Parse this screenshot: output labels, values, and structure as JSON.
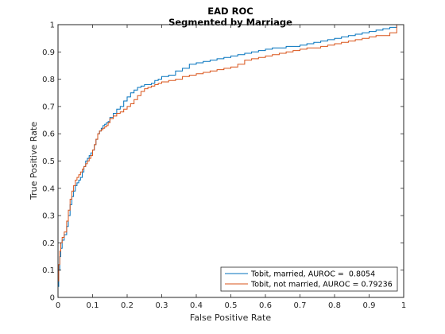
{
  "chart_data": {
    "type": "line",
    "title": "EAD ROC",
    "subtitle": "Segmented by Marriage",
    "xlabel": "False Positive Rate",
    "ylabel": "True Positive Rate",
    "xlim": [
      0,
      1
    ],
    "ylim": [
      0,
      1
    ],
    "xticks": [
      "0",
      "0.1",
      "0.2",
      "0.3",
      "0.4",
      "0.5",
      "0.6",
      "0.7",
      "0.8",
      "0.9",
      "1"
    ],
    "yticks": [
      "0",
      "0.1",
      "0.2",
      "0.3",
      "0.4",
      "0.5",
      "0.6",
      "0.7",
      "0.8",
      "0.9",
      "1"
    ],
    "grid": false,
    "legend_position": "bottom-right",
    "series": [
      {
        "name": "Tobit, married, AUROC =  0.8054",
        "color": "#0072BD",
        "x": [
          0,
          0.002,
          0.005,
          0.008,
          0.012,
          0.018,
          0.025,
          0.03,
          0.035,
          0.04,
          0.045,
          0.05,
          0.055,
          0.06,
          0.065,
          0.07,
          0.075,
          0.08,
          0.085,
          0.09,
          0.095,
          0.1,
          0.105,
          0.11,
          0.115,
          0.12,
          0.125,
          0.13,
          0.135,
          0.14,
          0.145,
          0.15,
          0.16,
          0.17,
          0.18,
          0.19,
          0.2,
          0.21,
          0.22,
          0.23,
          0.24,
          0.25,
          0.26,
          0.27,
          0.28,
          0.29,
          0.3,
          0.32,
          0.34,
          0.36,
          0.38,
          0.4,
          0.42,
          0.44,
          0.46,
          0.48,
          0.5,
          0.52,
          0.54,
          0.56,
          0.58,
          0.6,
          0.62,
          0.64,
          0.66,
          0.68,
          0.7,
          0.72,
          0.74,
          0.76,
          0.78,
          0.8,
          0.82,
          0.84,
          0.86,
          0.88,
          0.9,
          0.92,
          0.94,
          0.96,
          0.98,
          1.0
        ],
        "y": [
          0,
          0.04,
          0.1,
          0.15,
          0.18,
          0.21,
          0.23,
          0.26,
          0.3,
          0.34,
          0.37,
          0.39,
          0.41,
          0.42,
          0.43,
          0.44,
          0.46,
          0.48,
          0.5,
          0.51,
          0.52,
          0.53,
          0.54,
          0.56,
          0.58,
          0.6,
          0.61,
          0.62,
          0.63,
          0.635,
          0.64,
          0.645,
          0.66,
          0.675,
          0.69,
          0.7,
          0.72,
          0.735,
          0.75,
          0.76,
          0.77,
          0.775,
          0.78,
          0.78,
          0.785,
          0.795,
          0.8,
          0.81,
          0.815,
          0.83,
          0.84,
          0.855,
          0.86,
          0.865,
          0.87,
          0.875,
          0.88,
          0.885,
          0.89,
          0.895,
          0.9,
          0.905,
          0.91,
          0.915,
          0.915,
          0.92,
          0.92,
          0.925,
          0.93,
          0.935,
          0.94,
          0.945,
          0.95,
          0.955,
          0.96,
          0.965,
          0.97,
          0.975,
          0.98,
          0.985,
          0.99,
          1.0
        ]
      },
      {
        "name": "Tobit, not married, AUROC = 0.79236",
        "color": "#D95319",
        "x": [
          0,
          0.002,
          0.005,
          0.008,
          0.012,
          0.018,
          0.025,
          0.03,
          0.035,
          0.04,
          0.045,
          0.05,
          0.055,
          0.06,
          0.065,
          0.07,
          0.075,
          0.08,
          0.085,
          0.09,
          0.095,
          0.1,
          0.105,
          0.11,
          0.115,
          0.12,
          0.125,
          0.13,
          0.135,
          0.14,
          0.145,
          0.15,
          0.16,
          0.17,
          0.18,
          0.19,
          0.2,
          0.21,
          0.22,
          0.23,
          0.24,
          0.25,
          0.26,
          0.27,
          0.28,
          0.29,
          0.3,
          0.32,
          0.34,
          0.36,
          0.38,
          0.4,
          0.42,
          0.44,
          0.46,
          0.48,
          0.5,
          0.52,
          0.54,
          0.56,
          0.58,
          0.6,
          0.62,
          0.64,
          0.66,
          0.68,
          0.7,
          0.72,
          0.74,
          0.76,
          0.78,
          0.8,
          0.82,
          0.84,
          0.86,
          0.88,
          0.9,
          0.92,
          0.94,
          0.96,
          0.98,
          1.0
        ],
        "y": [
          0,
          0.06,
          0.12,
          0.17,
          0.2,
          0.22,
          0.24,
          0.28,
          0.32,
          0.36,
          0.39,
          0.41,
          0.43,
          0.44,
          0.45,
          0.46,
          0.47,
          0.48,
          0.49,
          0.5,
          0.51,
          0.52,
          0.54,
          0.56,
          0.58,
          0.6,
          0.61,
          0.615,
          0.62,
          0.625,
          0.63,
          0.64,
          0.655,
          0.665,
          0.675,
          0.68,
          0.69,
          0.7,
          0.71,
          0.725,
          0.74,
          0.755,
          0.765,
          0.77,
          0.775,
          0.78,
          0.785,
          0.79,
          0.795,
          0.8,
          0.81,
          0.815,
          0.82,
          0.825,
          0.83,
          0.835,
          0.84,
          0.845,
          0.855,
          0.87,
          0.875,
          0.88,
          0.885,
          0.89,
          0.895,
          0.9,
          0.905,
          0.91,
          0.915,
          0.915,
          0.92,
          0.925,
          0.93,
          0.935,
          0.94,
          0.945,
          0.95,
          0.955,
          0.96,
          0.96,
          0.97,
          1.0
        ]
      }
    ]
  }
}
